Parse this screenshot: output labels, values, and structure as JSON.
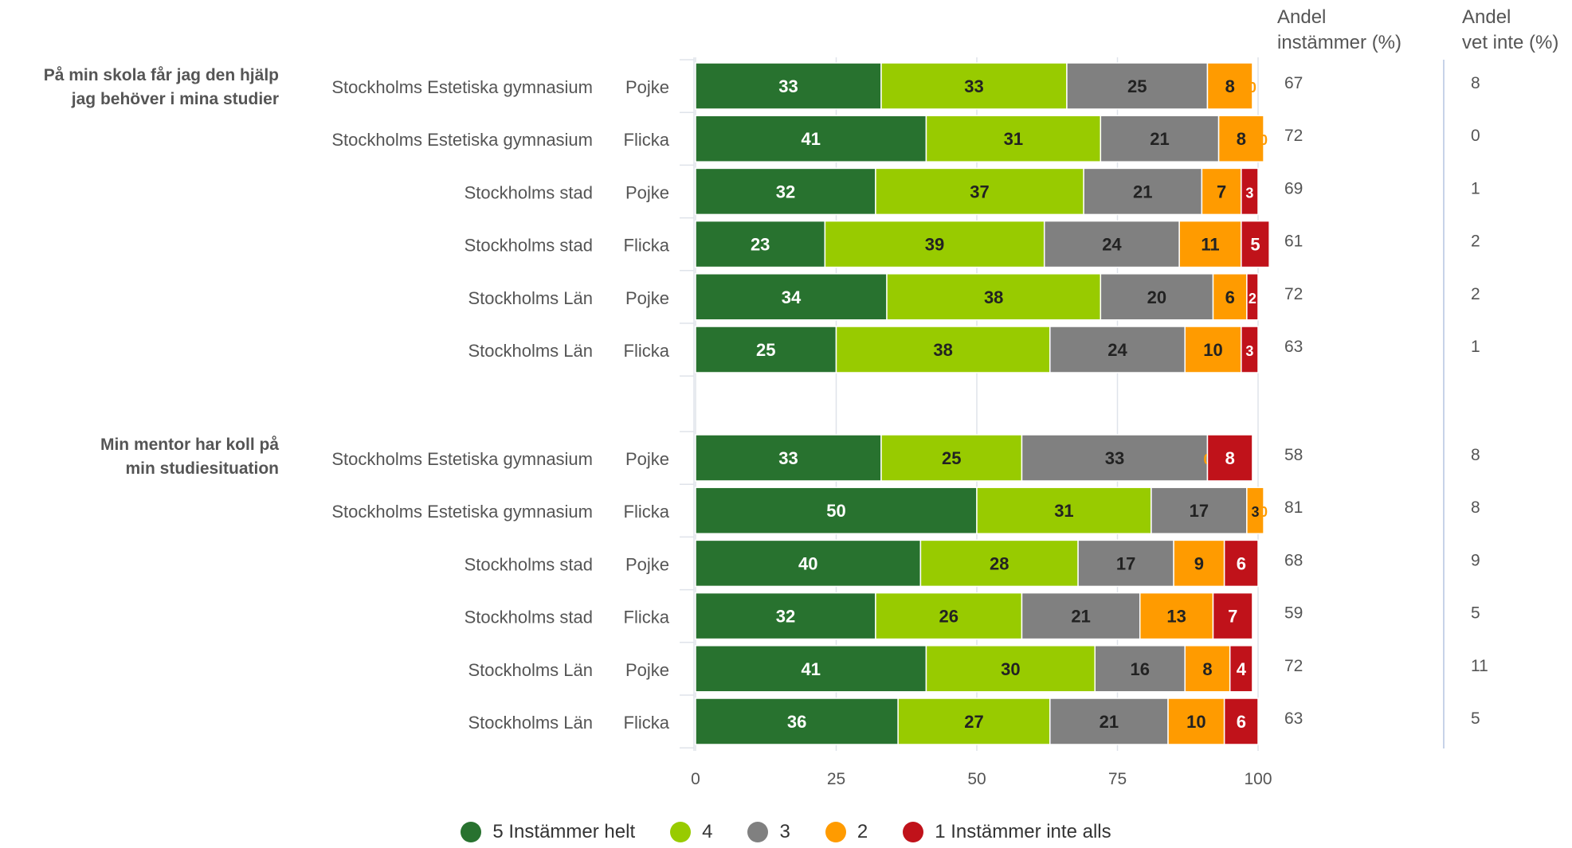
{
  "headers": {
    "instammer_line1": "Andel",
    "instammer_line2": "instämmer (%)",
    "vetinte_line1": "Andel",
    "vetinte_line2": "vet inte (%)"
  },
  "legend": [
    {
      "label": "5 Instämmer helt",
      "color": "#28722f"
    },
    {
      "label": "4",
      "color": "#98cb00"
    },
    {
      "label": "3",
      "color": "#808080"
    },
    {
      "label": "2",
      "color": "#ff9b00"
    },
    {
      "label": "1 Instämmer inte alls",
      "color": "#c0121a"
    }
  ],
  "chart_data": {
    "type": "bar",
    "orientation": "horizontal",
    "stacked": true,
    "xlim": [
      0,
      100
    ],
    "x_ticks": [
      0,
      25,
      50,
      75,
      100
    ],
    "grid": true,
    "legend_position": "bottom-center",
    "series_names": [
      "5 Instämmer helt",
      "4",
      "3",
      "2",
      "1 Instämmer inte alls"
    ],
    "groups": [
      {
        "question": [
          "På min skola får jag den hjälp",
          "jag behöver i mina studier"
        ],
        "rows": [
          {
            "unit": "Stockholms Estetiska gymnasium",
            "gender": "Pojke",
            "values": [
              33,
              33,
              25,
              8,
              0
            ],
            "instammer": 67,
            "vet_inte": 8
          },
          {
            "unit": "Stockholms Estetiska gymnasium",
            "gender": "Flicka",
            "values": [
              41,
              31,
              21,
              8,
              0
            ],
            "instammer": 72,
            "vet_inte": 0
          },
          {
            "unit": "Stockholms stad",
            "gender": "Pojke",
            "values": [
              32,
              37,
              21,
              7,
              3
            ],
            "instammer": 69,
            "vet_inte": 1
          },
          {
            "unit": "Stockholms stad",
            "gender": "Flicka",
            "values": [
              23,
              39,
              24,
              11,
              5
            ],
            "instammer": 61,
            "vet_inte": 2
          },
          {
            "unit": "Stockholms Län",
            "gender": "Pojke",
            "values": [
              34,
              38,
              20,
              6,
              2
            ],
            "instammer": 72,
            "vet_inte": 2
          },
          {
            "unit": "Stockholms Län",
            "gender": "Flicka",
            "values": [
              25,
              38,
              24,
              10,
              3
            ],
            "instammer": 63,
            "vet_inte": 1
          }
        ]
      },
      {
        "question": [
          "Min mentor har koll på",
          "min studiesituation"
        ],
        "rows": [
          {
            "unit": "Stockholms Estetiska gymnasium",
            "gender": "Pojke",
            "values": [
              33,
              25,
              33,
              0,
              8
            ],
            "instammer": 58,
            "vet_inte": 8
          },
          {
            "unit": "Stockholms Estetiska gymnasium",
            "gender": "Flicka",
            "values": [
              50,
              31,
              17,
              3,
              0
            ],
            "instammer": 81,
            "vet_inte": 8
          },
          {
            "unit": "Stockholms stad",
            "gender": "Pojke",
            "values": [
              40,
              28,
              17,
              9,
              6
            ],
            "instammer": 68,
            "vet_inte": 9
          },
          {
            "unit": "Stockholms stad",
            "gender": "Flicka",
            "values": [
              32,
              26,
              21,
              13,
              7
            ],
            "instammer": 59,
            "vet_inte": 5
          },
          {
            "unit": "Stockholms Län",
            "gender": "Pojke",
            "values": [
              41,
              30,
              16,
              8,
              4
            ],
            "instammer": 72,
            "vet_inte": 11
          },
          {
            "unit": "Stockholms Län",
            "gender": "Flicka",
            "values": [
              36,
              27,
              21,
              10,
              6
            ],
            "instammer": 63,
            "vet_inte": 5
          }
        ]
      }
    ]
  }
}
